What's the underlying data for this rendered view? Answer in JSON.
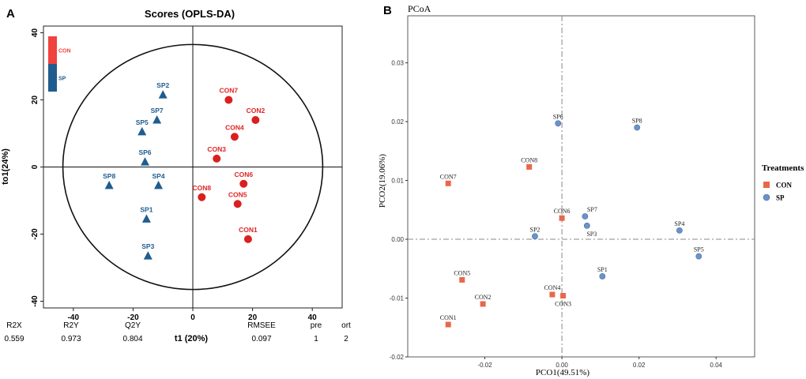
{
  "panels": {
    "a_label": "A",
    "b_label": "B"
  },
  "chart_data": [
    {
      "id": "A",
      "type": "scatter",
      "title": "Scores (OPLS-DA)",
      "xlabel": "t1 (20%)",
      "ylabel": "to1(24%)",
      "xlim": [
        -50,
        50
      ],
      "ylim": [
        -42,
        42
      ],
      "xticks": [
        -40,
        -20,
        0,
        20,
        40
      ],
      "yticks": [
        -40,
        -20,
        0,
        20,
        40
      ],
      "ellipse": {
        "rx": 43.5,
        "ry": 36.5
      },
      "legend": [
        {
          "name": "CON",
          "color": "#F0433E"
        },
        {
          "name": "SP",
          "color": "#1F5D8F"
        }
      ],
      "series": [
        {
          "name": "CON",
          "color": "#DB1F1F",
          "marker": "circle",
          "label_color": "#E02424",
          "points": [
            {
              "label": "CON7",
              "x": 12,
              "y": 20
            },
            {
              "label": "CON2",
              "x": 21,
              "y": 14
            },
            {
              "label": "CON4",
              "x": 14,
              "y": 9
            },
            {
              "label": "CON3",
              "x": 8,
              "y": 2.5
            },
            {
              "label": "CON6",
              "x": 17,
              "y": -5
            },
            {
              "label": "CON8",
              "x": 3,
              "y": -9
            },
            {
              "label": "CON5",
              "x": 15,
              "y": -11
            },
            {
              "label": "CON1",
              "x": 18.5,
              "y": -21.5
            }
          ]
        },
        {
          "name": "SP",
          "color": "#1F5D8F",
          "marker": "triangle",
          "label_color": "#1F5D8F",
          "points": [
            {
              "label": "SP2",
              "x": -10,
              "y": 21.5
            },
            {
              "label": "SP5",
              "x": -17,
              "y": 10.5
            },
            {
              "label": "SP7",
              "x": -12,
              "y": 14
            },
            {
              "label": "SP6",
              "x": -16,
              "y": 1.5
            },
            {
              "label": "SP8",
              "x": -28,
              "y": -5.5
            },
            {
              "label": "SP4",
              "x": -11.5,
              "y": -5.5
            },
            {
              "label": "SP1",
              "x": -15.5,
              "y": -15.5
            },
            {
              "label": "SP3",
              "x": -15,
              "y": -26.5
            }
          ]
        }
      ],
      "stats_headers": [
        "R2X",
        "R2Y",
        "Q2Y",
        "RMSEE",
        "pre",
        "ort"
      ],
      "stats_values": [
        "0.559",
        "0.973",
        "0.804",
        "0.097",
        "1",
        "2"
      ]
    },
    {
      "id": "B",
      "type": "scatter",
      "title": "PCoA",
      "xlabel": "PCO1(49.51%)",
      "ylabel": "PCO2(19.06%)",
      "xlim": [
        -0.04,
        0.05
      ],
      "ylim": [
        -0.02,
        0.038
      ],
      "xticks": [
        -0.02,
        0.0,
        0.02,
        0.04
      ],
      "xtick_labels": [
        "-0.02",
        "0.00",
        "0.02",
        "0.04"
      ],
      "yticks": [
        -0.02,
        -0.01,
        0.0,
        0.01,
        0.02,
        0.03
      ],
      "ytick_labels": [
        "-0.02",
        "-0.01",
        "0.00",
        "0.01",
        "0.02",
        "0.03"
      ],
      "legend_title": "Treatments",
      "legend": [
        {
          "name": "CON",
          "color": "#E8684A"
        },
        {
          "name": "SP",
          "color": "#6A93CC"
        }
      ],
      "series": [
        {
          "name": "CON",
          "color": "#E8684A",
          "marker": "square",
          "points": [
            {
              "label": "CON7",
              "x": -0.0295,
              "y": 0.0095
            },
            {
              "label": "CON8",
              "x": -0.0085,
              "y": 0.0123
            },
            {
              "label": "CON6",
              "x": 0.0,
              "y": 0.0036
            },
            {
              "label": "CON5",
              "x": -0.0259,
              "y": -0.0069
            },
            {
              "label": "CON4",
              "x": -0.0025,
              "y": -0.0094
            },
            {
              "label": "CON3",
              "x": 0.0003,
              "y": -0.0096
            },
            {
              "label": "CON2",
              "x": -0.0205,
              "y": -0.011
            },
            {
              "label": "CON1",
              "x": -0.0295,
              "y": -0.0145
            }
          ]
        },
        {
          "name": "SP",
          "color": "#6A93CC",
          "marker": "circle",
          "points": [
            {
              "label": "SP6",
              "x": -0.001,
              "y": 0.0197
            },
            {
              "label": "SP8",
              "x": 0.0195,
              "y": 0.019
            },
            {
              "label": "SP7",
              "x": 0.006,
              "y": 0.0039
            },
            {
              "label": "SP3",
              "x": 0.0065,
              "y": 0.0023
            },
            {
              "label": "SP2",
              "x": -0.007,
              "y": 0.0005
            },
            {
              "label": "SP4",
              "x": 0.0305,
              "y": 0.0015
            },
            {
              "label": "SP5",
              "x": 0.0355,
              "y": -0.0029
            },
            {
              "label": "SP1",
              "x": 0.0105,
              "y": -0.0063
            }
          ]
        }
      ]
    }
  ]
}
